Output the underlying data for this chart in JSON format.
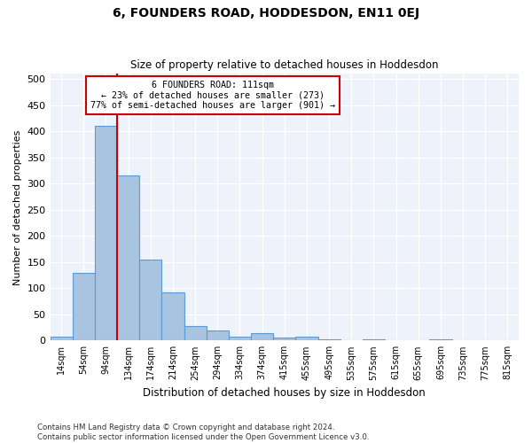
{
  "title": "6, FOUNDERS ROAD, HODDESDON, EN11 0EJ",
  "subtitle": "Size of property relative to detached houses in Hoddesdon",
  "xlabel": "Distribution of detached houses by size in Hoddesdon",
  "ylabel": "Number of detached properties",
  "bar_color": "#a8c4e0",
  "bar_edge_color": "#5b9bd5",
  "background_color": "#eef2fa",
  "grid_color": "#ffffff",
  "bin_labels": [
    "14sqm",
    "54sqm",
    "94sqm",
    "134sqm",
    "174sqm",
    "214sqm",
    "254sqm",
    "294sqm",
    "334sqm",
    "374sqm",
    "415sqm",
    "455sqm",
    "495sqm",
    "535sqm",
    "575sqm",
    "615sqm",
    "655sqm",
    "695sqm",
    "735sqm",
    "775sqm",
    "815sqm"
  ],
  "bar_heights": [
    7,
    130,
    410,
    315,
    155,
    92,
    28,
    20,
    8,
    14,
    5,
    7,
    3,
    0,
    2,
    0,
    0,
    2,
    0,
    0,
    0
  ],
  "ylim": [
    0,
    510
  ],
  "yticks": [
    0,
    50,
    100,
    150,
    200,
    250,
    300,
    350,
    400,
    450,
    500
  ],
  "property_line_x": 2.5,
  "annotation_title": "6 FOUNDERS ROAD: 111sqm",
  "annotation_line1": "← 23% of detached houses are smaller (273)",
  "annotation_line2": "77% of semi-detached houses are larger (901) →",
  "red_line_color": "#cc0000",
  "footer_line1": "Contains HM Land Registry data © Crown copyright and database right 2024.",
  "footer_line2": "Contains public sector information licensed under the Open Government Licence v3.0."
}
